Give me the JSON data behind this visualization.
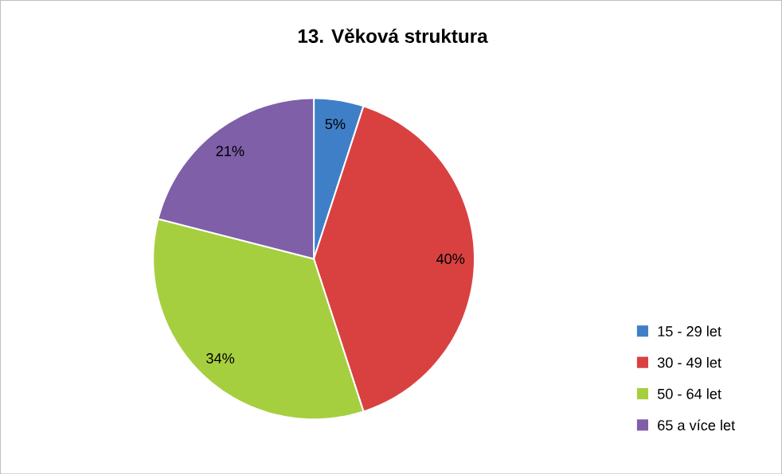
{
  "chart_data": {
    "type": "pie",
    "title": "13. Věková struktura",
    "categories": [
      "15 - 29 let",
      "30 - 49 let",
      "50 - 64 let",
      "65 a více let"
    ],
    "values": [
      5,
      40,
      34,
      21
    ],
    "value_labels": [
      "5%",
      "40%",
      "34%",
      "21%"
    ],
    "colors": [
      "#3f7fc8",
      "#d94141",
      "#a6cf3f",
      "#7e5fa8"
    ],
    "legend": "right"
  }
}
